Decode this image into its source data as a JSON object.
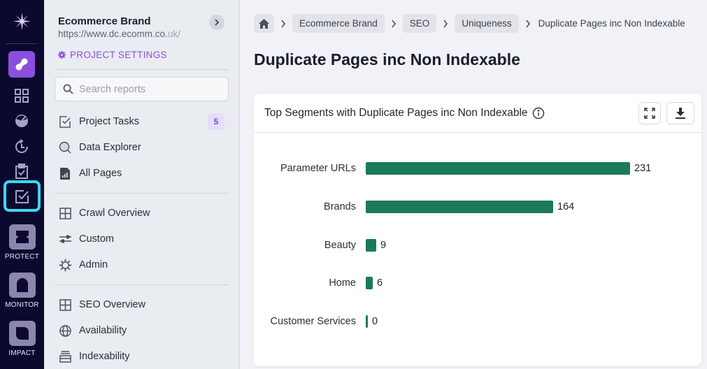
{
  "rail": {
    "logo": "sparkle-logo-icon",
    "items": [
      {
        "name": "analyze-app",
        "icon": "link-icon",
        "active": true
      },
      {
        "name": "dashboard",
        "icon": "grid-icon"
      },
      {
        "name": "health-score",
        "icon": "gauge-icon"
      },
      {
        "name": "history",
        "icon": "refresh-clock-icon"
      },
      {
        "name": "tasks",
        "icon": "clipboard-check-icon"
      },
      {
        "name": "project-tasks",
        "icon": "checkbox-icon",
        "focused": true
      }
    ],
    "apps": [
      {
        "label": "PROTECT",
        "icon": "protect-icon"
      },
      {
        "label": "MONITOR",
        "icon": "monitor-icon"
      },
      {
        "label": "IMPACT",
        "icon": "impact-icon"
      }
    ]
  },
  "sidebar": {
    "project_name": "Ecommerce Brand",
    "project_url_main": "https://www.dc.ecomm.co.",
    "project_url_fade": "uk/",
    "project_settings_label": "PROJECT SETTINGS",
    "search_placeholder": "Search reports",
    "groups": [
      [
        {
          "label": "Project Tasks",
          "icon": "task-checkbox-icon",
          "badge": "5"
        },
        {
          "label": "Data Explorer",
          "icon": "search-icon"
        },
        {
          "label": "All Pages",
          "icon": "document-chart-icon"
        }
      ],
      [
        {
          "label": "Crawl Overview",
          "icon": "grid-icon"
        },
        {
          "label": "Custom",
          "icon": "sliders-icon"
        },
        {
          "label": "Admin",
          "icon": "gear-icon"
        }
      ],
      [
        {
          "label": "SEO Overview",
          "icon": "grid-icon"
        },
        {
          "label": "Availability",
          "icon": "globe-icon"
        },
        {
          "label": "Indexability",
          "icon": "stack-icon"
        }
      ]
    ]
  },
  "breadcrumb": {
    "items": [
      "Ecommerce Brand",
      "SEO",
      "Uniqueness"
    ],
    "current": "Duplicate Pages inc Non Indexable"
  },
  "page": {
    "title": "Duplicate Pages inc Non Indexable"
  },
  "card": {
    "title": "Top Segments with Duplicate Pages inc Non Indexable",
    "expand_button": "expand-icon",
    "download_button": "download-icon"
  },
  "colors": {
    "bar": "#1b7a58",
    "accent": "#8b4fe0",
    "rail_bg": "#0b0a2e",
    "focus": "#3dd8f0"
  },
  "chart_data": {
    "type": "bar",
    "orientation": "horizontal",
    "title": "Top Segments with Duplicate Pages inc Non Indexable",
    "categories": [
      "Parameter URLs",
      "Brands",
      "Beauty",
      "Home",
      "Customer Services"
    ],
    "values": [
      231,
      164,
      9,
      6,
      0
    ],
    "value_labels": [
      "231",
      "164",
      "9",
      "6",
      "0"
    ],
    "xlabel": "",
    "ylabel": "",
    "grid": false,
    "legend": "none"
  }
}
